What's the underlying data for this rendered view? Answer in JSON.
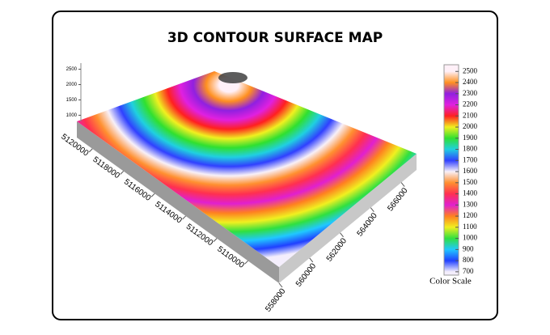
{
  "chart_data": {
    "type": "surface",
    "title": "3D CONTOUR SURFACE MAP",
    "xticks": [
      558000,
      560000,
      562000,
      564000,
      566000
    ],
    "xlim": [
      558000,
      567000
    ],
    "yticks": [
      5110000,
      5112000,
      5114000,
      5116000,
      5118000,
      5120000
    ],
    "ylim": [
      5108000,
      5121000
    ],
    "zticks": [
      1000,
      1500,
      2000,
      2500
    ],
    "zlim": [
      800,
      2700
    ],
    "colorbar": {
      "label": "Color Scale",
      "clim": [
        670,
        2560
      ],
      "ticks": [
        700,
        800,
        900,
        1000,
        1100,
        1200,
        1300,
        1400,
        1500,
        1600,
        1700,
        1800,
        1900,
        2000,
        2100,
        2200,
        2300,
        2400,
        2500
      ],
      "colors": [
        "#f4eefc",
        "#2040ff",
        "#20c8ff",
        "#30e040",
        "#f0f020",
        "#ff8020",
        "#e020d0",
        "#ff3050",
        "#ff9030",
        "#f8f0f8",
        "#3040ff",
        "#20d0e0",
        "#30e030",
        "#f0f020",
        "#ff2020",
        "#e020e0",
        "#9020e0",
        "#ff9020",
        "#fff0f8"
      ]
    }
  }
}
